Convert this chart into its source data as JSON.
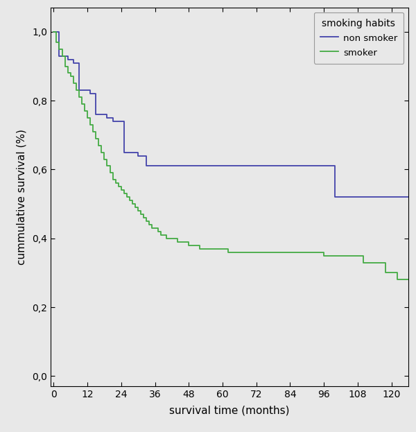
{
  "xlabel": "survival time (months)",
  "ylabel": "cummulative survival (%)",
  "legend_title": "smoking habits",
  "legend_labels": [
    "non smoker",
    "smoker"
  ],
  "figure_bg_color": "#e8e8e8",
  "plot_bg_color": "#e8e8e8",
  "non_smoker_color": "#4444aa",
  "smoker_color": "#44aa44",
  "xlim": [
    -1,
    126
  ],
  "ylim": [
    -0.03,
    1.07
  ],
  "xticks": [
    0,
    12,
    24,
    36,
    48,
    60,
    72,
    84,
    96,
    108,
    120
  ],
  "yticks": [
    0.0,
    0.2,
    0.4,
    0.6,
    0.8,
    1.0
  ],
  "ytick_labels": [
    "0,0",
    "0,2",
    "0,4",
    "0,6",
    "0,8",
    "1,0"
  ],
  "non_smoker_x": [
    0,
    1,
    2,
    4,
    5,
    7,
    9,
    11,
    13,
    15,
    17,
    19,
    21,
    25,
    28,
    30,
    33,
    36,
    40,
    97,
    100,
    126
  ],
  "non_smoker_y": [
    1.0,
    1.0,
    0.93,
    0.93,
    0.92,
    0.91,
    0.83,
    0.83,
    0.82,
    0.76,
    0.76,
    0.75,
    0.74,
    0.65,
    0.65,
    0.64,
    0.61,
    0.61,
    0.61,
    0.61,
    0.52,
    0.52
  ],
  "smoker_x": [
    0,
    1,
    2,
    3,
    4,
    5,
    6,
    7,
    8,
    9,
    10,
    11,
    12,
    13,
    14,
    15,
    16,
    17,
    18,
    19,
    20,
    21,
    22,
    23,
    24,
    25,
    26,
    27,
    28,
    29,
    30,
    31,
    32,
    33,
    34,
    35,
    36,
    37,
    38,
    40,
    42,
    44,
    46,
    48,
    50,
    52,
    54,
    58,
    60,
    62,
    65,
    68,
    72,
    80,
    84,
    90,
    96,
    100,
    105,
    110,
    114,
    118,
    122,
    126
  ],
  "smoker_y": [
    1.0,
    0.97,
    0.95,
    0.93,
    0.9,
    0.88,
    0.87,
    0.85,
    0.83,
    0.81,
    0.79,
    0.77,
    0.75,
    0.73,
    0.71,
    0.69,
    0.67,
    0.65,
    0.63,
    0.61,
    0.59,
    0.57,
    0.56,
    0.55,
    0.54,
    0.53,
    0.52,
    0.51,
    0.5,
    0.49,
    0.48,
    0.47,
    0.46,
    0.45,
    0.44,
    0.43,
    0.43,
    0.42,
    0.41,
    0.4,
    0.4,
    0.39,
    0.39,
    0.38,
    0.38,
    0.37,
    0.37,
    0.37,
    0.37,
    0.36,
    0.36,
    0.36,
    0.36,
    0.36,
    0.36,
    0.36,
    0.35,
    0.35,
    0.35,
    0.33,
    0.33,
    0.3,
    0.28,
    0.28
  ]
}
